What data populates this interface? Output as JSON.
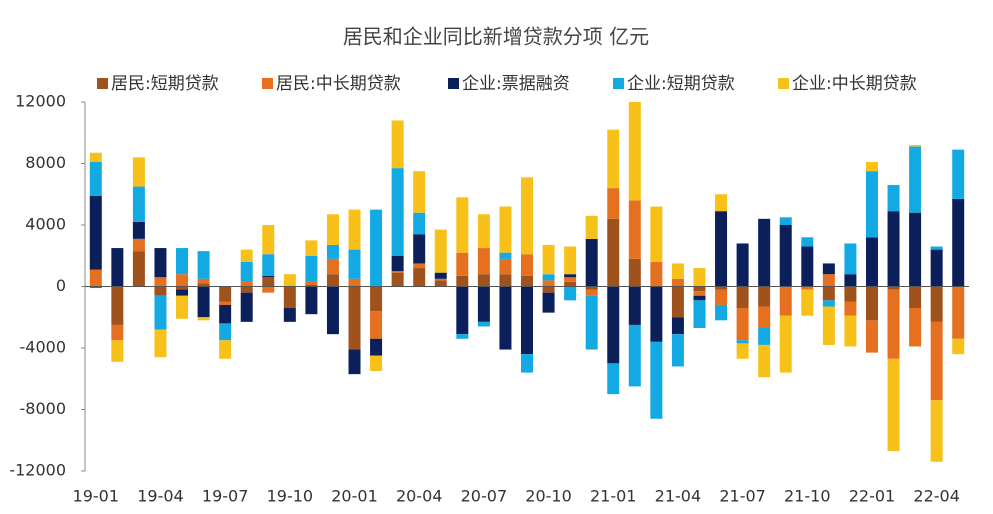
{
  "chart_data": {
    "type": "bar",
    "stacked": true,
    "title": "居民和企业同比新增贷款分项 亿元",
    "categories": [
      "19-01",
      null,
      null,
      "19-04",
      null,
      null,
      "19-07",
      null,
      null,
      "19-10",
      null,
      null,
      "20-01",
      null,
      null,
      "20-04",
      null,
      null,
      "20-07",
      null,
      null,
      "20-10",
      null,
      null,
      "21-01",
      null,
      null,
      "21-04",
      null,
      null,
      "21-07",
      null,
      null,
      "21-10",
      null,
      null,
      "22-01",
      null,
      null,
      "22-04",
      null
    ],
    "series": [
      {
        "name": "居民:短期贷款",
        "color": "#a0521d",
        "values": [
          -100,
          -2500,
          2300,
          -600,
          -200,
          200,
          -1000,
          -400,
          600,
          -1400,
          100,
          800,
          -4100,
          -1600,
          900,
          1200,
          400,
          700,
          800,
          800,
          700,
          -400,
          300,
          -200,
          4400,
          1800,
          0,
          -2000,
          -300,
          -200,
          -1400,
          -1300,
          0,
          0,
          -900,
          -1000,
          -2200,
          -200,
          -1400,
          -2300,
          0
        ]
      },
      {
        "name": "居民:中长期贷款",
        "color": "#e5701f",
        "values": [
          1100,
          -1000,
          800,
          600,
          800,
          300,
          -200,
          300,
          -400,
          0,
          200,
          1000,
          500,
          -1800,
          100,
          300,
          100,
          1500,
          1700,
          1000,
          1400,
          400,
          300,
          -400,
          2000,
          3800,
          1600,
          500,
          -300,
          -1000,
          -2100,
          -1400,
          -1900,
          -200,
          800,
          -900,
          -2100,
          -4500,
          -2500,
          -5100,
          -3400
        ]
      },
      {
        "name": "企业:票据融资",
        "color": "#0b1f5b",
        "values": [
          4800,
          2500,
          1100,
          1900,
          -400,
          -2000,
          -1200,
          -1900,
          100,
          -900,
          -1800,
          -3100,
          -1600,
          -1100,
          1000,
          1900,
          400,
          -3100,
          -2300,
          -4100,
          -4400,
          -1300,
          200,
          3100,
          -5000,
          -2500,
          -3600,
          -1100,
          -300,
          4900,
          2800,
          4400,
          4000,
          2600,
          700,
          800,
          3200,
          4900,
          4800,
          2400,
          5700
        ]
      },
      {
        "name": "企业:短期贷款",
        "color": "#13a9e3",
        "values": [
          2200,
          0,
          2300,
          -2200,
          1700,
          1800,
          -1100,
          1300,
          1400,
          0,
          1700,
          900,
          1900,
          5000,
          5700,
          1400,
          0,
          -300,
          -300,
          400,
          -1200,
          400,
          -900,
          -3500,
          -2000,
          -4000,
          -5000,
          -2100,
          -1800,
          -1000,
          -200,
          -1100,
          500,
          600,
          -400,
          2000,
          4300,
          1700,
          4300,
          200,
          3200
        ]
      },
      {
        "name": "企业:中长期贷款",
        "color": "#f7c11a",
        "values": [
          600,
          -1400,
          1900,
          -1800,
          -1500,
          -200,
          -1200,
          800,
          1900,
          800,
          1000,
          2000,
          2600,
          -1000,
          3100,
          2700,
          2800,
          3600,
          2200,
          3000,
          5000,
          1900,
          1800,
          1500,
          3800,
          6400,
          3600,
          1000,
          1200,
          1100,
          -1000,
          -2100,
          -3700,
          -1700,
          -2500,
          -2000,
          600,
          -6000,
          100,
          -4000,
          -1000
        ]
      }
    ],
    "ylim": [
      -12000,
      12000
    ],
    "yticks": [
      -12000,
      -8000,
      -4000,
      0,
      4000,
      8000,
      12000
    ],
    "grid": false,
    "legend": "top"
  }
}
